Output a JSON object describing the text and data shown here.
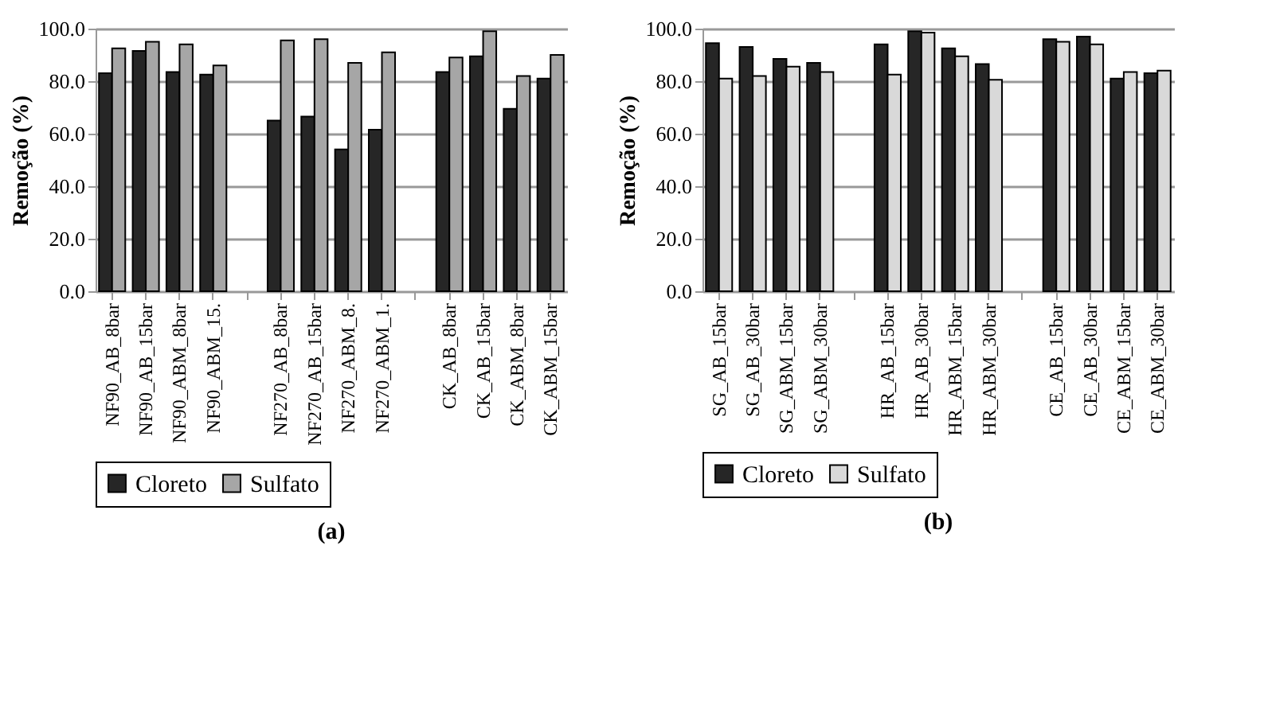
{
  "chart_data": [
    {
      "type": "bar",
      "ylabel": "Remoção (%)",
      "annotations": [
        "(a)"
      ],
      "legend": "bottom",
      "grid": "y",
      "categories": [
        "NF90_AB_8bar",
        "NF90_AB_15bar",
        "NF90_ABM_8bar",
        "NF90_ABM_15.",
        null,
        "NF270_AB_8bar",
        "NF270_AB_15bar",
        "NF270_ABM_8.",
        "NF270_ABM_1.",
        null,
        "CK_AB_8bar",
        "CK_AB_15bar",
        "CK_ABM_8bar",
        "CK_ABM_15bar"
      ],
      "ylim": [
        0,
        100
      ],
      "yticks": [
        {
          "value": 0,
          "label": "0.0"
        },
        {
          "value": 20,
          "label": "20.0"
        },
        {
          "value": 40,
          "label": "40.0"
        },
        {
          "value": 60,
          "label": "60.0"
        },
        {
          "value": 80,
          "label": "80.0"
        },
        {
          "value": 100,
          "label": "100.0"
        }
      ],
      "series": [
        {
          "name": "Cloreto",
          "color": "#262626",
          "values": [
            83,
            91.5,
            83.5,
            82.5,
            null,
            65,
            66.5,
            54,
            61.5,
            null,
            83.5,
            89.5,
            69.5,
            81
          ]
        },
        {
          "name": "Sulfato",
          "color": "#a6a6a6",
          "values": [
            92.5,
            95,
            94,
            86,
            null,
            95.5,
            96,
            87,
            91,
            null,
            89,
            99,
            82,
            90
          ]
        }
      ]
    },
    {
      "type": "bar",
      "ylabel": "Remoção (%)",
      "annotations": [
        "(b)"
      ],
      "legend": "bottom",
      "grid": "y",
      "categories": [
        "SG_AB_15bar",
        "SG_AB_30bar",
        "SG_ABM_15bar",
        "SG_ABM_30bar",
        null,
        "HR_AB_15bar",
        "HR_AB_30bar",
        "HR_ABM_15bar",
        "HR_ABM_30bar",
        null,
        "CE_AB_15bar",
        "CE_AB_30bar",
        "CE_ABM_15bar",
        "CE_ABM_30bar"
      ],
      "ylim": [
        0,
        100
      ],
      "yticks": [
        {
          "value": 0,
          "label": "0.0"
        },
        {
          "value": 20,
          "label": "20.0"
        },
        {
          "value": 40,
          "label": "40.0"
        },
        {
          "value": 60,
          "label": "60.0"
        },
        {
          "value": 80,
          "label": "80.0"
        },
        {
          "value": 100,
          "label": "100.0"
        }
      ],
      "series": [
        {
          "name": "Cloreto",
          "color": "#262626",
          "values": [
            94.5,
            93,
            88.5,
            87,
            null,
            94,
            99,
            92.5,
            86.5,
            null,
            96,
            97,
            81,
            83
          ]
        },
        {
          "name": "Sulfato",
          "color": "#d9d9d9",
          "values": [
            81,
            82,
            85.5,
            83.5,
            null,
            82.5,
            98.5,
            89.5,
            80.5,
            null,
            95,
            94,
            83.5,
            84
          ]
        }
      ]
    }
  ]
}
